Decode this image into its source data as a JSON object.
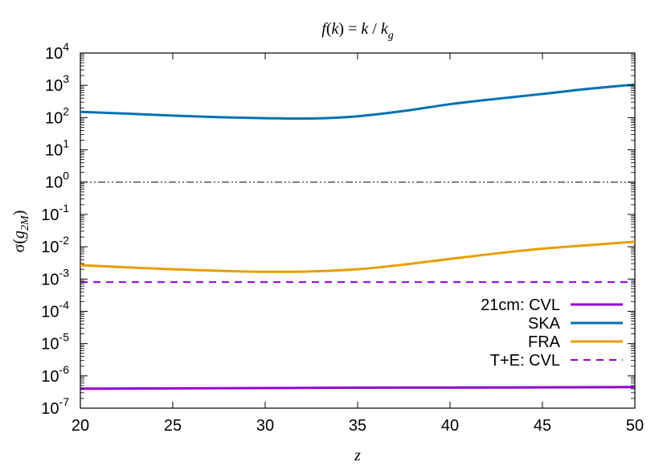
{
  "chart_data": {
    "type": "line",
    "title": "f(k) = k / k_g",
    "title_parts": {
      "f": "f",
      "open": "(",
      "k": "k",
      "close": ")",
      "equals": " = ",
      "k2": "k",
      "slash": " / ",
      "kg": "k",
      "g": "g"
    },
    "xlabel": "z",
    "ylabel": {
      "sigma": "σ(",
      "g": "g",
      "sub": "2M",
      "close": ")"
    },
    "xlim": [
      20,
      50
    ],
    "ylim": [
      1e-07,
      10000.0
    ],
    "yscale": "log",
    "grid": false,
    "legend_position": "bottom-right",
    "x_ticks": [
      {
        "value": 20,
        "label": "20"
      },
      {
        "value": 25,
        "label": "25"
      },
      {
        "value": 30,
        "label": "30"
      },
      {
        "value": 35,
        "label": "35"
      },
      {
        "value": 40,
        "label": "40"
      },
      {
        "value": 45,
        "label": "45"
      },
      {
        "value": 50,
        "label": "50"
      }
    ],
    "y_ticks": [
      {
        "value": 10000.0,
        "base": "10",
        "exp": "4"
      },
      {
        "value": 1000.0,
        "base": "10",
        "exp": "3"
      },
      {
        "value": 100.0,
        "base": "10",
        "exp": "2"
      },
      {
        "value": 10.0,
        "base": "10",
        "exp": "1"
      },
      {
        "value": 1.0,
        "base": "10",
        "exp": "0"
      },
      {
        "value": 0.1,
        "base": "10",
        "exp": "-1"
      },
      {
        "value": 0.01,
        "base": "10",
        "exp": "-2"
      },
      {
        "value": 0.001,
        "base": "10",
        "exp": "-3"
      },
      {
        "value": 0.0001,
        "base": "10",
        "exp": "-4"
      },
      {
        "value": 1e-05,
        "base": "10",
        "exp": "-5"
      },
      {
        "value": 1e-06,
        "base": "10",
        "exp": "-6"
      },
      {
        "value": 1e-07,
        "base": "10",
        "exp": "-7"
      }
    ],
    "reference_line": {
      "y": 1,
      "style": "dash-dot-dot",
      "color": "#000000"
    },
    "series": [
      {
        "name": "21cm: CVL",
        "color": "#9400d3",
        "style": "solid",
        "x": [
          20,
          25,
          30,
          35,
          40,
          45,
          50
        ],
        "y": [
          4e-07,
          4.1e-07,
          4.2e-07,
          4.3e-07,
          4.35e-07,
          4.4e-07,
          4.5e-07
        ]
      },
      {
        "name": "SKA",
        "color": "#0072b2",
        "style": "solid",
        "x": [
          20,
          22.5,
          25,
          27.5,
          30,
          32.5,
          35,
          37.5,
          40,
          42.5,
          45,
          47.5,
          50
        ],
        "y": [
          150,
          133,
          115,
          103,
          96,
          94,
          110,
          160,
          260,
          380,
          540,
          780,
          1050
        ]
      },
      {
        "name": "FRA",
        "color": "#e69f00",
        "style": "solid",
        "x": [
          20,
          22.5,
          25,
          27.5,
          30,
          32.5,
          35,
          37.5,
          40,
          42.5,
          45,
          47.5,
          50
        ],
        "y": [
          0.0027,
          0.0023,
          0.002,
          0.0018,
          0.00168,
          0.00172,
          0.002,
          0.0028,
          0.0042,
          0.0062,
          0.0087,
          0.0112,
          0.0143
        ]
      },
      {
        "name": "T+E: CVL",
        "color": "#9400d3",
        "style": "dashed",
        "x": [
          20,
          50
        ],
        "y": [
          0.0008,
          0.0008
        ]
      }
    ]
  }
}
